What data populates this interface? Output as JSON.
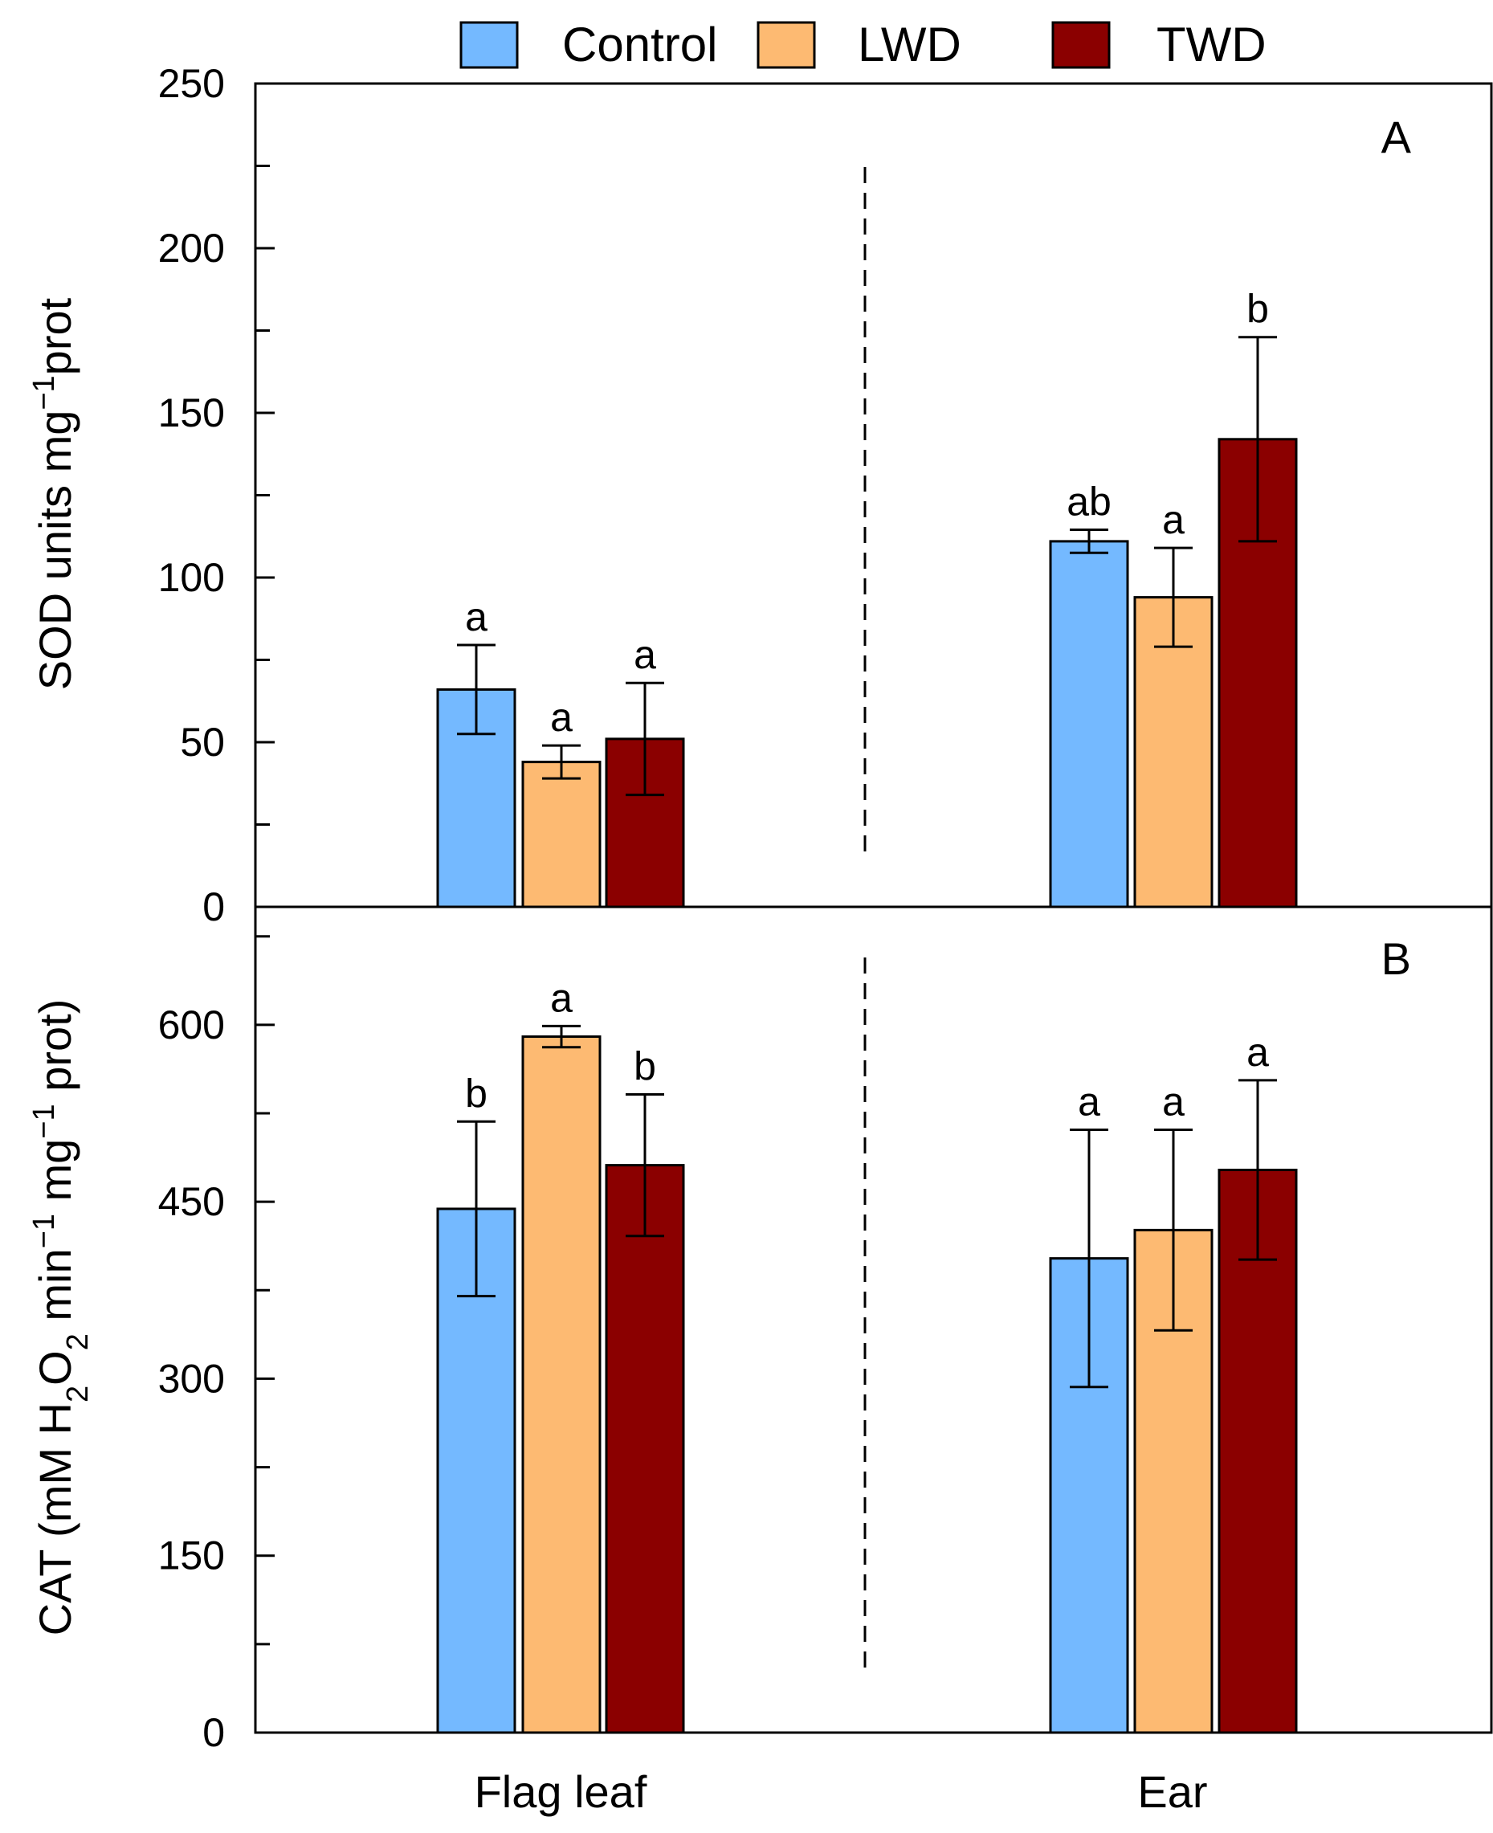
{
  "legend": [
    {
      "label": "Control",
      "color": "#74b9ff"
    },
    {
      "label": "LWD",
      "color": "#fdba72"
    },
    {
      "label": "TWD",
      "color": "#8b0000"
    }
  ],
  "categories": [
    "Flag leaf",
    "Ear"
  ],
  "chart_data": [
    {
      "type": "bar",
      "panel": "A",
      "ylabel_parts": {
        "pre": "SOD units mg",
        "sup": "−1",
        "post": "prot"
      },
      "ylim": [
        0,
        250
      ],
      "major_ticks": [
        0,
        50,
        100,
        150,
        200,
        250
      ],
      "minor_step": 25,
      "tick_labels": [
        "0",
        "50",
        "100",
        "150",
        "200",
        "250"
      ],
      "categories": [
        "Flag leaf",
        "Ear"
      ],
      "series": [
        {
          "name": "Control",
          "values": [
            66,
            111
          ],
          "errors": [
            13.5,
            3.5
          ],
          "letters": [
            "a",
            "ab"
          ]
        },
        {
          "name": "LWD",
          "values": [
            44,
            94
          ],
          "errors": [
            5,
            15
          ],
          "letters": [
            "a",
            "a"
          ]
        },
        {
          "name": "TWD",
          "values": [
            51,
            142
          ],
          "errors": [
            17,
            31
          ],
          "letters": [
            "a",
            "b"
          ]
        }
      ]
    },
    {
      "type": "bar",
      "panel": "B",
      "ylabel_parts": {
        "pre": "CAT (mM H",
        "sub1": "2",
        "mid1": "O",
        "sub2": "2",
        "mid2": " min",
        "sup1": "−1",
        "mid3": " mg",
        "sup2": "−1",
        "post": " prot)"
      },
      "ylim": [
        0,
        700
      ],
      "major_ticks": [
        0,
        150,
        300,
        450,
        600
      ],
      "minor_step": 75,
      "tick_labels": [
        "0",
        "150",
        "300",
        "450",
        "600"
      ],
      "categories": [
        "Flag leaf",
        "Ear"
      ],
      "series": [
        {
          "name": "Control",
          "values": [
            444,
            402
          ],
          "errors": [
            74,
            109
          ],
          "letters": [
            "b",
            "a"
          ]
        },
        {
          "name": "LWD",
          "values": [
            590,
            426
          ],
          "errors": [
            9,
            85
          ],
          "letters": [
            "a",
            "a"
          ]
        },
        {
          "name": "TWD",
          "values": [
            481,
            477
          ],
          "errors": [
            60,
            76
          ],
          "letters": [
            "b",
            "a"
          ]
        }
      ]
    }
  ]
}
